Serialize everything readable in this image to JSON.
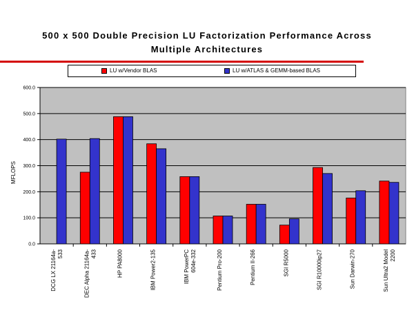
{
  "chart_data": {
    "type": "bar",
    "title_line1": "500 x 500 Double Precision LU Factorization Performance Across",
    "title_line2": "Multiple Architectures",
    "ylabel": "MFLOPS",
    "xlabel": "",
    "ylim": [
      0,
      600
    ],
    "yticks": [
      "0.0",
      "100.0",
      "200.0",
      "300.0",
      "400.0",
      "500.0",
      "600.0"
    ],
    "grid": true,
    "legend_position": "top",
    "categories": [
      [
        "DCG LX 21164a-",
        "533"
      ],
      [
        "DEC Alpha 21164a-",
        "433"
      ],
      [
        "HP PA8000"
      ],
      [
        "IBM Power2-135"
      ],
      [
        "IBM PowerPC",
        "604e-332"
      ],
      [
        "Pentium Pro-200"
      ],
      [
        "Pentium II-266"
      ],
      [
        "SGI R5000"
      ],
      [
        "SGI R10000ip27"
      ],
      [
        "Sun Darwin-270"
      ],
      [
        "Sun Ultra2 Model",
        "2200"
      ]
    ],
    "series": [
      {
        "name": "LU w/Vendor BLAS",
        "color": "#ff0000",
        "values": [
          null,
          275,
          488,
          384,
          258,
          107,
          152,
          72,
          293,
          176,
          241
        ]
      },
      {
        "name": "LU w/ATLAS & GEMM-based BLAS",
        "color": "#3333cc",
        "values": [
          402,
          404,
          488,
          365,
          258,
          107,
          152,
          96,
          270,
          204,
          236
        ]
      }
    ],
    "plot_background": "#c0c0c0"
  }
}
